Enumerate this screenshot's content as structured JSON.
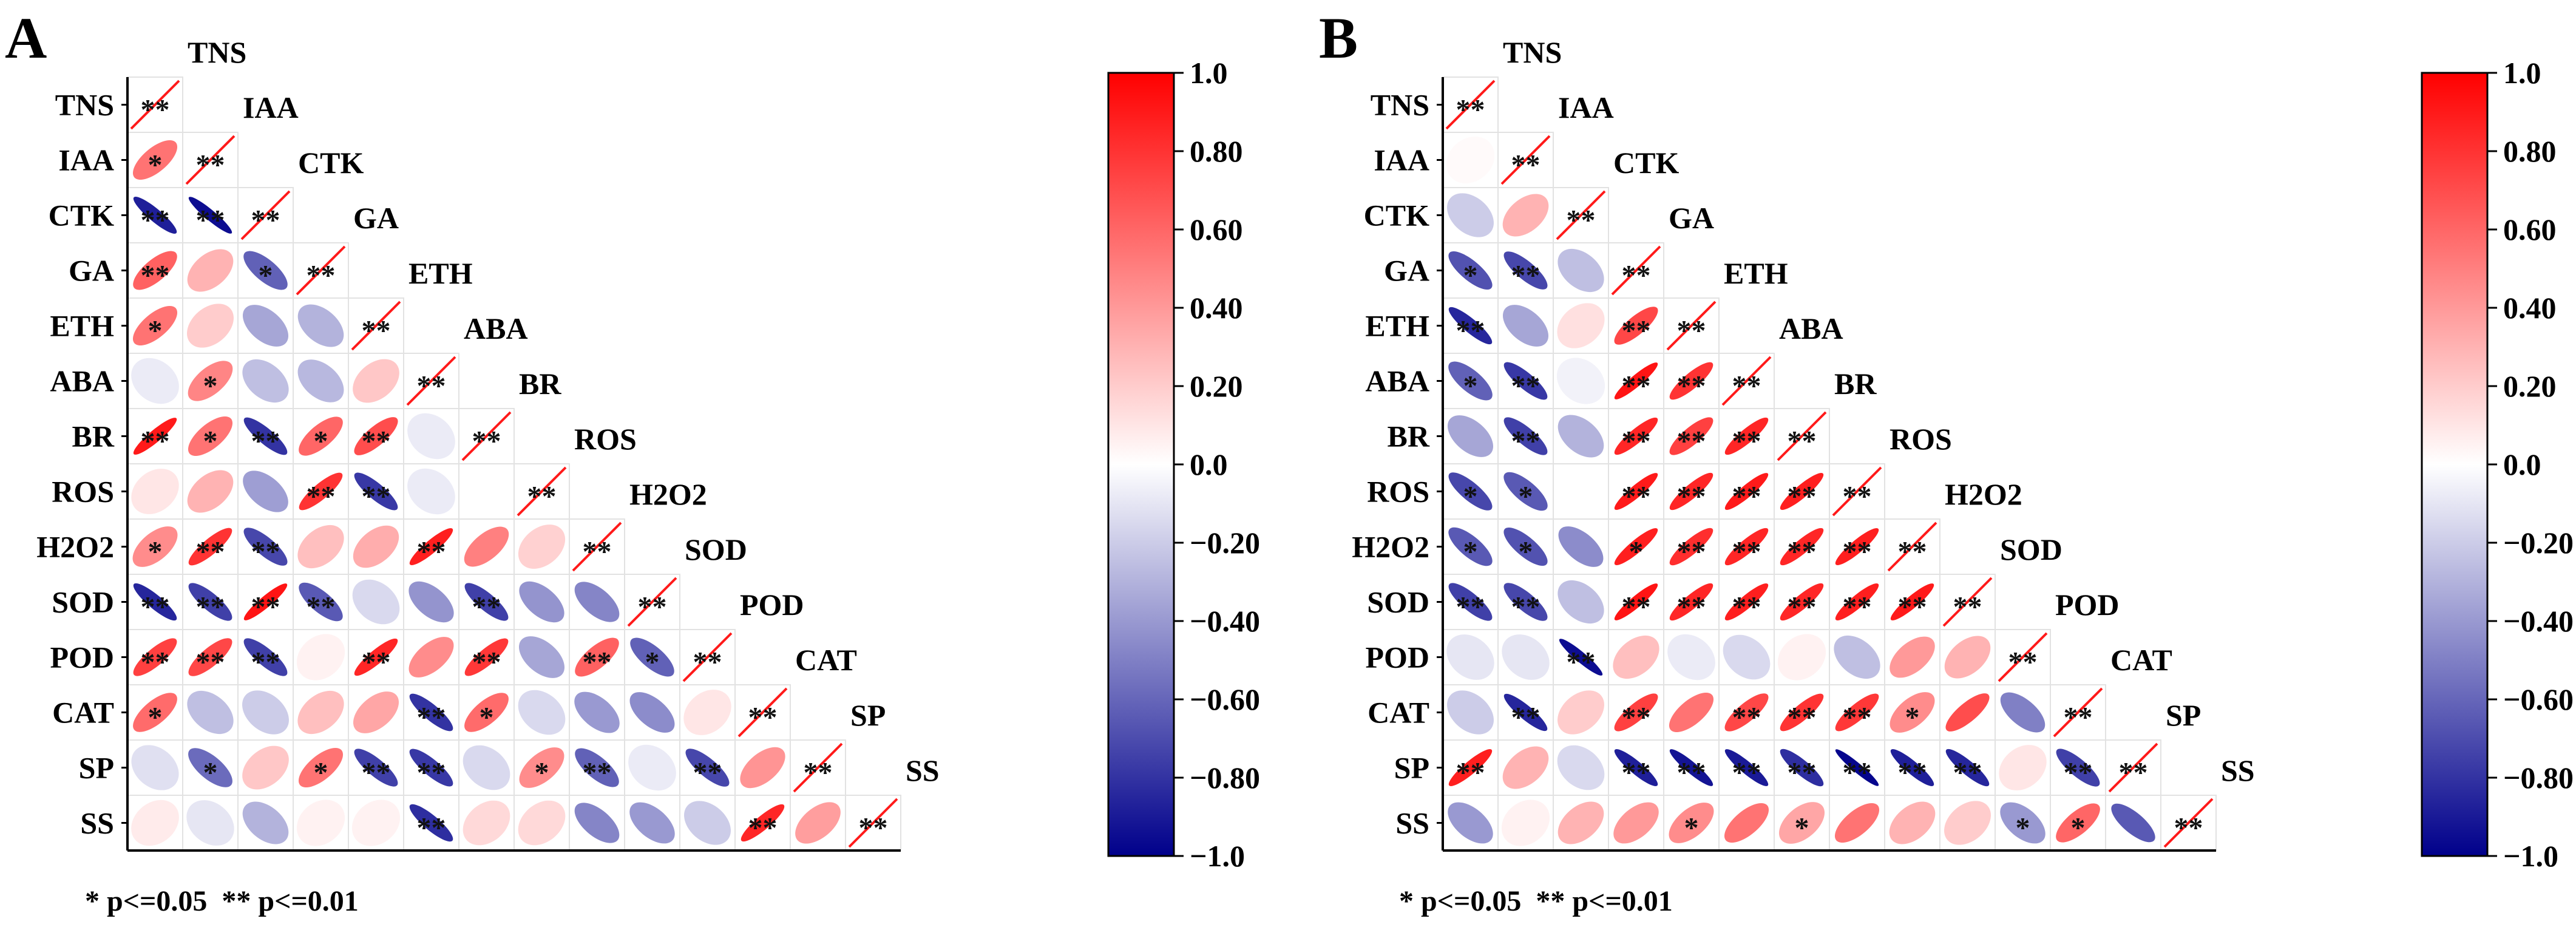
{
  "chart_data": [
    {
      "type": "heatmap",
      "panel_label": "A",
      "variables": [
        "TNS",
        "IAA",
        "CTK",
        "GA",
        "ETH",
        "ABA",
        "BR",
        "ROS",
        "H2O2",
        "SOD",
        "POD",
        "CAT",
        "SP",
        "SS"
      ],
      "matrix": [
        [
          1
        ],
        [
          0.55,
          1
        ],
        [
          -0.88,
          -0.95,
          1
        ],
        [
          0.62,
          0.3,
          -0.62,
          1
        ],
        [
          0.55,
          0.2,
          -0.35,
          -0.3,
          1
        ],
        [
          -0.08,
          0.48,
          -0.25,
          -0.28,
          0.22,
          1
        ],
        [
          0.9,
          0.55,
          -0.8,
          0.6,
          0.7,
          -0.08,
          1
        ],
        [
          0.1,
          0.3,
          -0.38,
          0.8,
          -0.78,
          -0.08,
          0.0,
          1
        ],
        [
          0.45,
          0.8,
          -0.72,
          0.25,
          0.32,
          0.88,
          0.5,
          0.18,
          1
        ],
        [
          -0.85,
          -0.75,
          0.92,
          -0.65,
          -0.15,
          -0.42,
          -0.75,
          -0.42,
          -0.48,
          1
        ],
        [
          0.75,
          0.72,
          -0.75,
          0.05,
          0.85,
          0.45,
          0.78,
          -0.35,
          0.62,
          -0.62,
          1
        ],
        [
          0.58,
          -0.25,
          -0.2,
          0.25,
          0.35,
          -0.8,
          0.58,
          -0.15,
          -0.4,
          -0.45,
          0.1,
          1
        ],
        [
          -0.12,
          -0.58,
          0.22,
          0.55,
          -0.75,
          -0.78,
          -0.15,
          0.45,
          -0.62,
          -0.08,
          -0.72,
          0.42,
          1
        ],
        [
          0.08,
          -0.1,
          -0.3,
          0.05,
          0.05,
          -0.82,
          0.15,
          0.15,
          -0.48,
          -0.4,
          -0.2,
          0.85,
          0.38,
          1
        ]
      ],
      "significance": [
        [
          "**"
        ],
        [
          "*",
          "**"
        ],
        [
          "**",
          "**",
          "**"
        ],
        [
          "**",
          "",
          "*",
          "**"
        ],
        [
          "*",
          "",
          "",
          "",
          "**"
        ],
        [
          "",
          "*",
          "",
          "",
          "",
          "**"
        ],
        [
          "**",
          "*",
          "**",
          "*",
          "**",
          "",
          "**"
        ],
        [
          "",
          "",
          "",
          "**",
          "**",
          "",
          "",
          "**"
        ],
        [
          "*",
          "**",
          "**",
          "",
          "",
          "**",
          "",
          "",
          "**"
        ],
        [
          "**",
          "**",
          "**",
          "**",
          "",
          "",
          "**",
          "",
          "",
          "**"
        ],
        [
          "**",
          "**",
          "**",
          "",
          "**",
          "",
          "**",
          "",
          "**",
          "*",
          "**"
        ],
        [
          "*",
          "",
          "",
          "",
          "",
          "**",
          "*",
          "",
          "",
          "",
          "",
          "**"
        ],
        [
          "",
          "*",
          "",
          "*",
          "**",
          "**",
          "",
          "*",
          "**",
          "",
          "**",
          "",
          "**"
        ],
        [
          "",
          "",
          "",
          "",
          "",
          "**",
          "",
          "",
          "",
          "",
          "",
          "**",
          "",
          "**"
        ]
      ],
      "colorbar": {
        "range": [
          -1.0,
          1.0
        ],
        "ticks": [
          "1.0",
          "0.80",
          "0.60",
          "0.40",
          "0.20",
          "0.0",
          "−0.20",
          "−0.40",
          "−0.60",
          "−0.80",
          "−1.0"
        ],
        "colors": {
          "high": "#ff0000",
          "mid": "#ffffff",
          "low": "#00008b"
        }
      },
      "legend_text": "* p<=0.05  ** p<=0.01"
    },
    {
      "type": "heatmap",
      "panel_label": "B",
      "variables": [
        "TNS",
        "IAA",
        "CTK",
        "GA",
        "ETH",
        "ABA",
        "BR",
        "ROS",
        "H2O2",
        "SOD",
        "POD",
        "CAT",
        "SP",
        "SS"
      ],
      "matrix": [
        [
          1
        ],
        [
          0.02,
          1
        ],
        [
          -0.2,
          0.3,
          1
        ],
        [
          -0.68,
          -0.72,
          -0.25,
          1
        ],
        [
          -0.85,
          -0.35,
          0.12,
          0.72,
          1
        ],
        [
          -0.62,
          -0.78,
          -0.05,
          0.92,
          0.8,
          1
        ],
        [
          -0.35,
          -0.75,
          -0.3,
          0.85,
          0.75,
          0.85,
          1
        ],
        [
          -0.72,
          -0.65,
          0.0,
          0.9,
          0.85,
          0.9,
          0.88,
          1
        ],
        [
          -0.65,
          -0.68,
          -0.45,
          0.88,
          0.82,
          0.85,
          0.85,
          0.88,
          1
        ],
        [
          -0.75,
          -0.72,
          -0.25,
          0.92,
          0.85,
          0.88,
          0.85,
          0.88,
          0.9,
          1
        ],
        [
          -0.1,
          -0.1,
          -0.95,
          0.25,
          -0.08,
          -0.15,
          0.05,
          -0.25,
          0.4,
          0.3,
          1
        ],
        [
          -0.2,
          -0.85,
          0.2,
          0.75,
          0.55,
          0.72,
          0.8,
          0.78,
          0.45,
          0.7,
          -0.5,
          1
        ],
        [
          0.88,
          0.3,
          -0.15,
          -0.88,
          -0.92,
          -0.9,
          -0.82,
          -0.98,
          -0.88,
          -0.85,
          0.1,
          -0.75,
          1
        ],
        [
          -0.4,
          0.05,
          0.3,
          0.4,
          0.45,
          0.55,
          0.35,
          0.55,
          0.3,
          0.2,
          -0.4,
          0.6,
          -0.65,
          1
        ]
      ],
      "significance": [
        [
          "**"
        ],
        [
          "",
          "**"
        ],
        [
          "",
          "",
          "**"
        ],
        [
          "*",
          "**",
          "",
          "**"
        ],
        [
          "**",
          "",
          "",
          "**",
          "**"
        ],
        [
          "*",
          "**",
          "",
          "**",
          "**",
          "**"
        ],
        [
          "",
          "**",
          "",
          "**",
          "**",
          "**",
          "**"
        ],
        [
          "*",
          "*",
          "",
          "**",
          "**",
          "**",
          "**",
          "**"
        ],
        [
          "*",
          "*",
          "",
          "*",
          "**",
          "**",
          "**",
          "**",
          "**"
        ],
        [
          "**",
          "**",
          "",
          "**",
          "**",
          "**",
          "**",
          "**",
          "**",
          "**"
        ],
        [
          "",
          "",
          "**",
          "",
          "",
          "",
          "",
          "",
          "",
          "",
          "**"
        ],
        [
          "",
          "**",
          "",
          "**",
          "",
          "**",
          "**",
          "**",
          "*",
          "",
          "",
          "**"
        ],
        [
          "**",
          "",
          "",
          "**",
          "**",
          "**",
          "**",
          "**",
          "**",
          "**",
          "",
          "**",
          "**"
        ],
        [
          "",
          "",
          "",
          "",
          "*",
          "",
          "*",
          "",
          "",
          "",
          "*",
          "*",
          "",
          "**"
        ]
      ],
      "colorbar": {
        "range": [
          -1.0,
          1.0
        ],
        "ticks": [
          "1.0",
          "0.80",
          "0.60",
          "0.40",
          "0.20",
          "0.0",
          "−0.20",
          "−0.40",
          "−0.60",
          "−0.80",
          "−1.0"
        ],
        "colors": {
          "high": "#ff0000",
          "mid": "#ffffff",
          "low": "#00008b"
        }
      },
      "legend_text": "* p<=0.05  ** p<=0.01"
    }
  ]
}
